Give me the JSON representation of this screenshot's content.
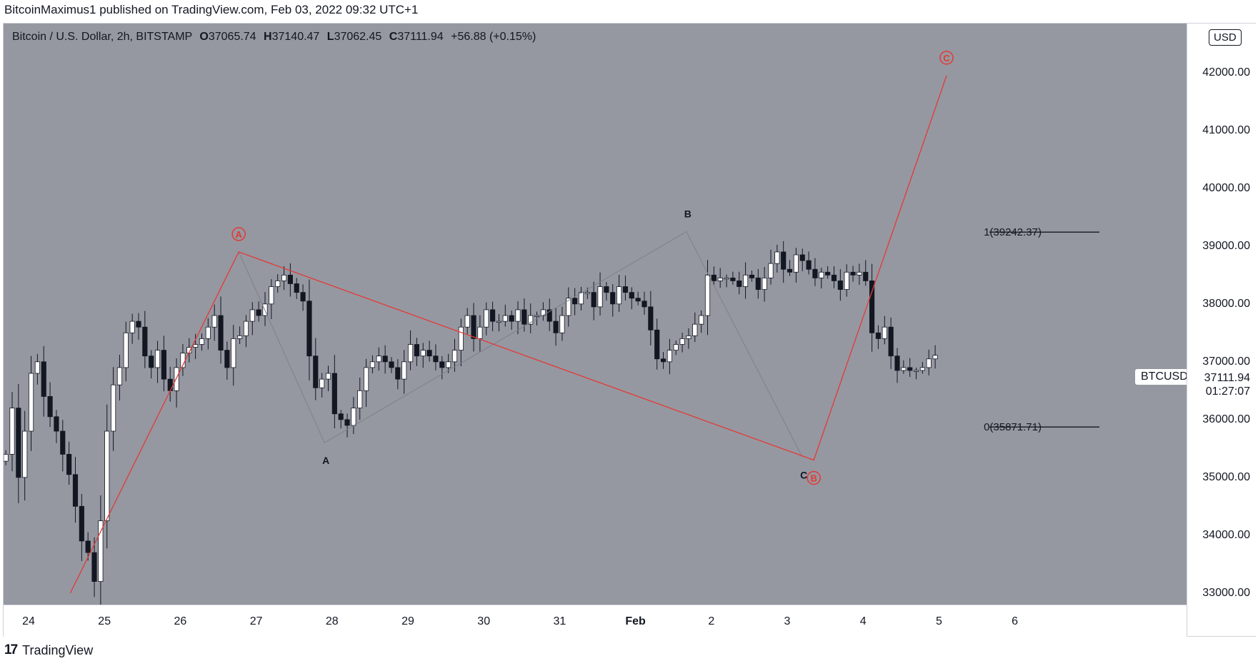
{
  "header": {
    "published_by": "BitcoinMaximus1 published on TradingView.com, Feb 03, 2022 09:32 UTC+1"
  },
  "legend": {
    "symbol": "Bitcoin / U.S. Dollar, 2h, BITSTAMP",
    "o_key": "O",
    "o_val": "37065.74",
    "h_key": "H",
    "h_val": "37140.47",
    "l_key": "L",
    "l_val": "37062.45",
    "c_key": "C",
    "c_val": "37111.94",
    "change": "+56.88 (+0.15%)"
  },
  "price_axis": {
    "currency": "USD",
    "ticker": "BTCUSD",
    "last_price": "37111.94",
    "countdown": "01:27:07"
  },
  "footer": {
    "logo": "17",
    "brand": "TradingView"
  },
  "colors": {
    "pane": "#9598a1",
    "wave": "#e53935",
    "bull": "#ffffff",
    "bear": "#131722",
    "thin": "#7e818a"
  },
  "chart_data": {
    "type": "candlestick",
    "title": "Bitcoin / U.S. Dollar, 2h, BITSTAMP",
    "ylim": [
      32800,
      42850
    ],
    "y_ticks": [
      33000,
      34000,
      35000,
      36000,
      37000,
      38000,
      39000,
      40000,
      41000,
      42000
    ],
    "y_tick_labels": [
      "33000.00",
      "34000.00",
      "35000.00",
      "36000.00",
      "37000.00",
      "38000.00",
      "39000.00",
      "40000.00",
      "41000.00",
      "42000.00"
    ],
    "x_ticks": [
      "24",
      "25",
      "26",
      "27",
      "28",
      "29",
      "30",
      "31",
      "Feb",
      "2",
      "3",
      "4",
      "5",
      "6"
    ],
    "x_tick_days": [
      0,
      1,
      2,
      3,
      4,
      5,
      6,
      7,
      8,
      9,
      10,
      11,
      12,
      13
    ],
    "candle_period_days": 0.0833333,
    "candle_start_day": -0.3,
    "closes": [
      35400,
      36200,
      35000,
      35800,
      36800,
      37000,
      36400,
      36050,
      35800,
      35400,
      35050,
      34500,
      33900,
      33700,
      33200,
      34250,
      35800,
      36600,
      36900,
      37500,
      37700,
      37600,
      37100,
      36900,
      37200,
      36700,
      36500,
      36900,
      37150,
      37250,
      37300,
      37400,
      37600,
      37800,
      37200,
      36900,
      37400,
      37450,
      37700,
      37900,
      37800,
      38000,
      38300,
      38400,
      38500,
      38350,
      38200,
      38050,
      37100,
      36550,
      36700,
      36800,
      36100,
      36000,
      35900,
      36200,
      36500,
      36900,
      37000,
      37100,
      37000,
      36900,
      36700,
      37000,
      37300,
      37100,
      37200,
      37100,
      37000,
      36900,
      37000,
      37200,
      37600,
      37800,
      37400,
      37600,
      37900,
      37700,
      37700,
      37800,
      37700,
      37900,
      37650,
      37800,
      37800,
      37900,
      37700,
      37500,
      37800,
      38100,
      38000,
      38200,
      38200,
      37950,
      38300,
      38200,
      38000,
      38300,
      38200,
      38100,
      38050,
      37950,
      37550,
      37050,
      37000,
      37200,
      37300,
      37400,
      37450,
      37650,
      37800,
      38500,
      38400,
      38450,
      38450,
      38400,
      38300,
      38500,
      38450,
      38250,
      38450,
      38700,
      38900,
      38600,
      38550,
      38850,
      38750,
      38600,
      38450,
      38550,
      38500,
      38400,
      38250,
      38550,
      38500,
      38550,
      38400,
      37500,
      37400,
      37600,
      37100,
      36850,
      36900,
      36850,
      36850,
      36900,
      37050,
      37111.94
    ]
  },
  "waves": {
    "red_points": [
      {
        "day": 0.55,
        "price": 33000,
        "label": ""
      },
      {
        "day": 2.77,
        "price": 38900,
        "label": "A"
      },
      {
        "day": 10.35,
        "price": 35300,
        "label": "B"
      },
      {
        "day": 12.1,
        "price": 41950,
        "label": "C"
      }
    ],
    "gray_points": [
      {
        "day": 2.77,
        "price": 38900,
        "label": ""
      },
      {
        "day": 3.9,
        "price": 35600,
        "label": "A"
      },
      {
        "day": 8.67,
        "price": 39250,
        "label": "B"
      },
      {
        "day": 10.2,
        "price": 35350,
        "label": "C"
      }
    ],
    "fib_levels": [
      {
        "label": "1(39242.37)",
        "price": 39242.37
      },
      {
        "label": "0(35871.71)",
        "price": 35871.71
      }
    ]
  }
}
